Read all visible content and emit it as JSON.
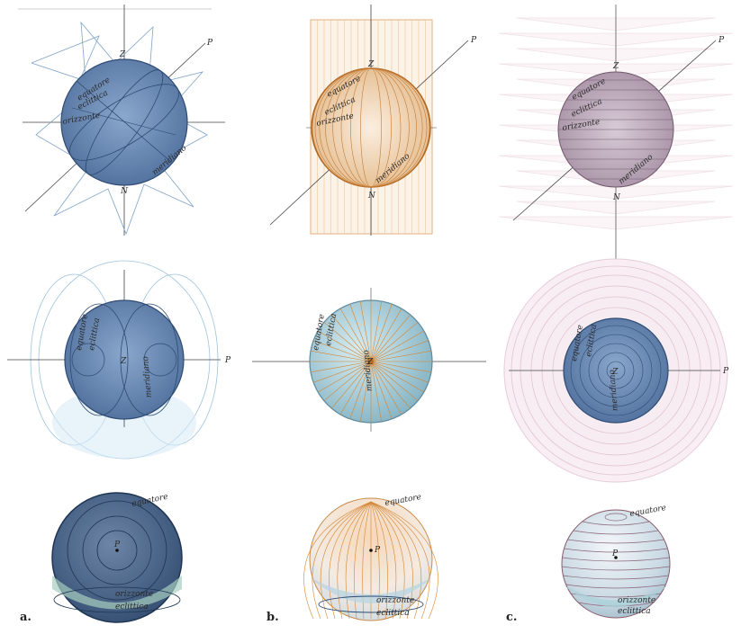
{
  "labels": {
    "z": "Z",
    "n": "N",
    "p": "P",
    "equatore": "equatore",
    "eclittica": "eclittica",
    "orizzonte": "orizzonte",
    "meridiano": "meridiano"
  },
  "captions": [
    "a.",
    "b.",
    "c."
  ],
  "colors": {
    "blue_fill": "#6f8fb8",
    "blue_line": "#3d5f8f",
    "orange_line": "#d9893a",
    "orange_fill": "#e7c8a8",
    "pink_line": "#d9b3c3",
    "mauve_fill": "#a895a8",
    "teal_fill": "#a9cdd6"
  }
}
